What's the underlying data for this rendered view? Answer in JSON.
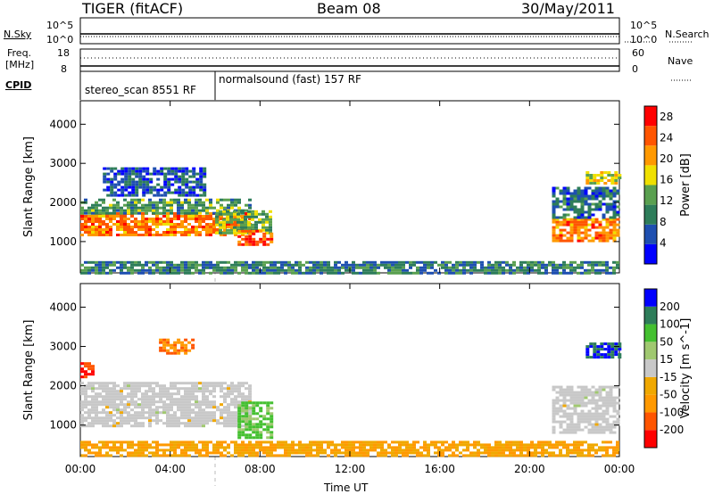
{
  "header": {
    "radar": "TIGER (fitACF)",
    "beam": "Beam 08",
    "date": "30/May/2011"
  },
  "strip": {
    "nsky_label": "N.Sky",
    "nsky_ticks": [
      "10^5",
      "10^0"
    ],
    "nsearch_label": "N.Search",
    "nsearch_ticks": [
      "10^5",
      "10^0"
    ],
    "freq_label_1": "Freq.",
    "freq_label_2": "[MHz]",
    "freq_ticks": [
      "18",
      "8"
    ],
    "nave_label": "Nave",
    "nave_ticks": [
      "60",
      "0"
    ],
    "cpid_label": "CPID",
    "cpid_1": "stereo_scan 8551 RF",
    "cpid_2": "normalsound (fast) 157 RF",
    "cpid_change_hour": 6
  },
  "chart_data": [
    {
      "type": "heatmap",
      "parameter": "Power",
      "ylabel": "Slant Range [km]",
      "ylim": [
        200,
        4600
      ],
      "yticks": [
        "1000",
        "2000",
        "3000",
        "4000"
      ],
      "xlim_hours": [
        0,
        24
      ],
      "xticks": [
        "00:00",
        "04:00",
        "08:00",
        "12:00",
        "16:00",
        "20:00",
        "00:00"
      ],
      "colorbar_label": "Power [dB]",
      "colorbar_ticks": [
        "28",
        "24",
        "20",
        "16",
        "12",
        "8",
        "4"
      ],
      "colorbar_range": [
        0,
        30
      ],
      "colors": [
        "#0000ff",
        "#1e4fb0",
        "#2e7d5a",
        "#5aa050",
        "#f0e000",
        "#ff9900",
        "#ff5500",
        "#ff0000"
      ],
      "regions": [
        {
          "t": [
            0.0,
            7.5
          ],
          "r": [
            1150,
            1750
          ],
          "v": 24
        },
        {
          "t": [
            0.0,
            7.5
          ],
          "r": [
            1750,
            2100
          ],
          "v": 12
        },
        {
          "t": [
            1.0,
            5.5
          ],
          "r": [
            2200,
            2900
          ],
          "v": 6
        },
        {
          "t": [
            6.0,
            8.5
          ],
          "r": [
            1200,
            1800
          ],
          "v": 14
        },
        {
          "t": [
            7.0,
            8.5
          ],
          "r": [
            900,
            1300
          ],
          "v": 26
        },
        {
          "t": [
            0.0,
            24.0
          ],
          "r": [
            200,
            500
          ],
          "v": 10
        },
        {
          "t": [
            21.0,
            24.0
          ],
          "r": [
            1050,
            1600
          ],
          "v": 24
        },
        {
          "t": [
            21.0,
            24.0
          ],
          "r": [
            1600,
            2400
          ],
          "v": 8
        },
        {
          "t": [
            22.5,
            24.0
          ],
          "r": [
            2500,
            2800
          ],
          "v": 18
        }
      ]
    },
    {
      "type": "heatmap",
      "parameter": "Velocity",
      "ylabel": "Slant Range [km]",
      "ylim": [
        200,
        4600
      ],
      "yticks": [
        "1000",
        "2000",
        "3000",
        "4000"
      ],
      "xlim_hours": [
        0,
        24
      ],
      "xticks": [
        "00:00",
        "04:00",
        "08:00",
        "12:00",
        "16:00",
        "20:00",
        "00:00"
      ],
      "xlabel": "Time UT",
      "colorbar_label": "Velocity [m s^-1]",
      "colorbar_ticks": [
        "200",
        "100",
        "50",
        "15",
        "-15",
        "-50",
        "-100",
        "-200"
      ],
      "colors": [
        "#ff0000",
        "#ff5500",
        "#ff9900",
        "#f0a800",
        "#c8c8c8",
        "#a0c870",
        "#44c030",
        "#2e7d5a",
        "#0000ff"
      ],
      "regions": [
        {
          "t": [
            0.0,
            7.5
          ],
          "r": [
            1000,
            2100
          ],
          "v": 0
        },
        {
          "t": [
            7.0,
            8.5
          ],
          "r": [
            700,
            1600
          ],
          "v": 60
        },
        {
          "t": [
            0.0,
            0.6
          ],
          "r": [
            2200,
            2600
          ],
          "v": -200
        },
        {
          "t": [
            3.5,
            5.0
          ],
          "r": [
            2800,
            3200
          ],
          "v": -100
        },
        {
          "t": [
            0.0,
            24.0
          ],
          "r": [
            200,
            600
          ],
          "v": -50
        },
        {
          "t": [
            21.0,
            24.0
          ],
          "r": [
            800,
            2000
          ],
          "v": 0
        },
        {
          "t": [
            22.5,
            24.0
          ],
          "r": [
            2700,
            3100
          ],
          "v": 200
        }
      ]
    }
  ]
}
